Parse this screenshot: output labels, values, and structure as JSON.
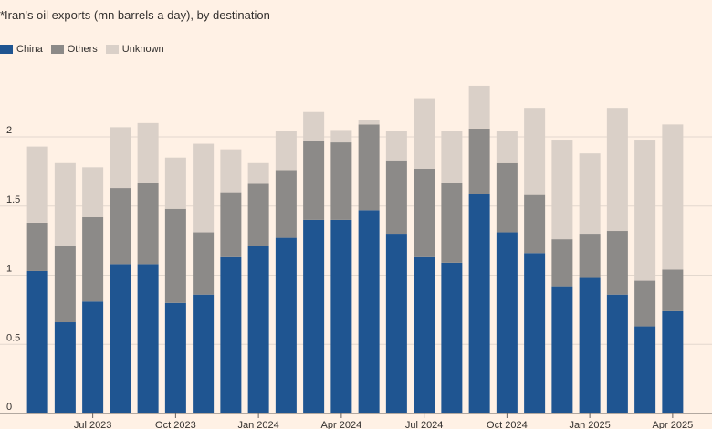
{
  "chart_data": {
    "type": "bar",
    "stacked": true,
    "title": "*Iran's oil exports (mn barrels a day), by destination",
    "xlabel": "",
    "ylabel": "",
    "ylim": [
      0,
      2.5
    ],
    "yticks": [
      0,
      0.5,
      1,
      1.5,
      2
    ],
    "ytick_labels": [
      "0",
      "0.5",
      "1",
      "1.5",
      "2"
    ],
    "grid": true,
    "legend_position": "top-left",
    "categories": [
      "2023-05",
      "2023-06",
      "2023-07",
      "2023-08",
      "2023-09",
      "2023-10",
      "2023-11",
      "2023-12",
      "2024-01",
      "2024-02",
      "2024-03",
      "2024-04",
      "2024-05",
      "2024-06",
      "2024-07",
      "2024-08",
      "2024-09",
      "2024-10",
      "2024-11",
      "2024-12",
      "2025-01",
      "2025-02",
      "2025-03",
      "2025-04"
    ],
    "xtick_labels": [
      {
        "category": "2023-07",
        "label": "Jul 2023"
      },
      {
        "category": "2023-10",
        "label": "Oct 2023"
      },
      {
        "category": "2024-01",
        "label": "Jan 2024"
      },
      {
        "category": "2024-04",
        "label": "Apr 2024"
      },
      {
        "category": "2024-07",
        "label": "Jul 2024"
      },
      {
        "category": "2024-10",
        "label": "Oct 2024"
      },
      {
        "category": "2025-01",
        "label": "Jan 2025"
      },
      {
        "category": "2025-04",
        "label": "Apr 2025"
      }
    ],
    "series": [
      {
        "name": "China",
        "color": "#1F5591",
        "values": [
          1.03,
          0.66,
          0.81,
          1.08,
          1.08,
          0.8,
          0.86,
          1.13,
          1.21,
          1.27,
          1.4,
          1.4,
          1.47,
          1.3,
          1.13,
          1.09,
          1.59,
          1.31,
          1.16,
          0.92,
          0.98,
          0.86,
          0.63,
          0.74
        ]
      },
      {
        "name": "Others",
        "color": "#8C8A88",
        "values": [
          0.35,
          0.55,
          0.61,
          0.55,
          0.59,
          0.68,
          0.45,
          0.47,
          0.45,
          0.49,
          0.57,
          0.56,
          0.62,
          0.53,
          0.64,
          0.58,
          0.47,
          0.5,
          0.42,
          0.34,
          0.32,
          0.46,
          0.33,
          0.3
        ]
      },
      {
        "name": "Unknown",
        "color": "#DAD0C8",
        "values": [
          0.55,
          0.6,
          0.36,
          0.44,
          0.43,
          0.37,
          0.64,
          0.31,
          0.15,
          0.28,
          0.21,
          0.09,
          0.03,
          0.21,
          0.51,
          0.37,
          0.31,
          0.23,
          0.63,
          0.72,
          0.58,
          0.89,
          1.02,
          1.05
        ]
      }
    ]
  }
}
